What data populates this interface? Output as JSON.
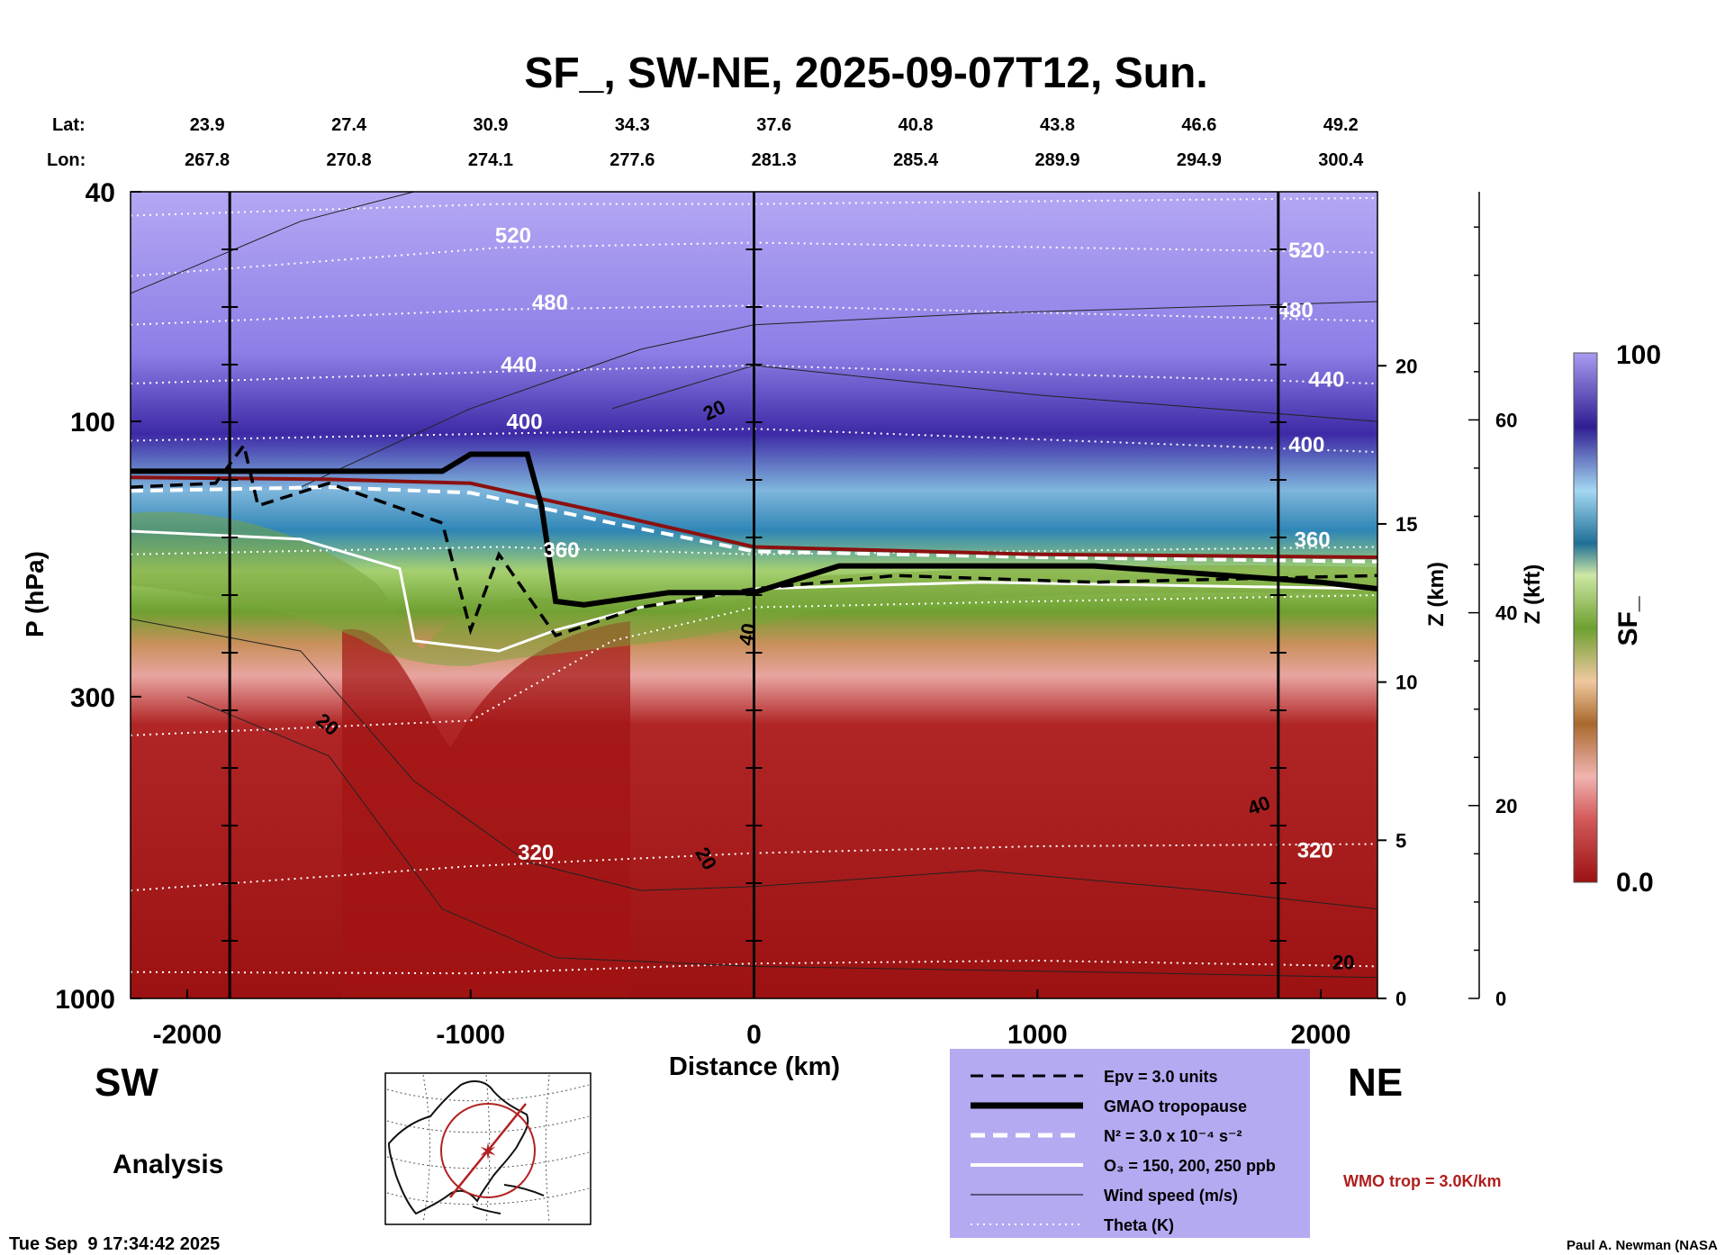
{
  "chart_data": {
    "type": "heatmap",
    "title": "SF_, SW-NE, 2025-09-07T12, Sun.",
    "xlabel": "Distance (km)",
    "ylabel": "P (hPa)",
    "zlabel": "Z (km)",
    "zkft_label": "Z (kft)",
    "xlim": [
      -2200,
      2200
    ],
    "ylim": [
      1000,
      40
    ],
    "x_ticks": [
      -2000,
      -1000,
      0,
      1000,
      2000
    ],
    "x_tick_labels": [
      "-2000",
      "-1000",
      "0",
      "1000",
      "2000"
    ],
    "y_ticks": [
      40,
      100,
      300,
      1000
    ],
    "y_tick_labels": [
      "40",
      "100",
      "300",
      "1000"
    ],
    "z_ticks": [
      0,
      5,
      10,
      15,
      20
    ],
    "z_tick_labels": [
      "0",
      "5",
      "10",
      "15",
      "20"
    ],
    "zkft_ticks": [
      0,
      20,
      40,
      60
    ],
    "zkft_tick_labels": [
      "0",
      "20",
      "40",
      "60"
    ],
    "lat_label": "Lat:",
    "lon_label": "Lon:",
    "lat_values": [
      "23.9",
      "27.4",
      "30.9",
      "34.3",
      "37.6",
      "40.8",
      "43.8",
      "46.6",
      "49.2"
    ],
    "lon_values": [
      "267.8",
      "270.8",
      "274.1",
      "277.6",
      "281.3",
      "285.4",
      "289.9",
      "294.9",
      "300.4"
    ],
    "vertical_markers_km": [
      -1850,
      0,
      1850
    ],
    "colorbar": {
      "label": "SF_",
      "min_label": "0.0",
      "max_label": "100"
    },
    "theta_labels": [
      {
        "text": "520",
        "x": -850,
        "p": 49
      },
      {
        "text": "480",
        "x": -720,
        "p": 64
      },
      {
        "text": "440",
        "x": -830,
        "p": 82
      },
      {
        "text": "400",
        "x": -810,
        "p": 103
      },
      {
        "text": "360",
        "x": -680,
        "p": 172
      },
      {
        "text": "320",
        "x": -770,
        "p": 575
      },
      {
        "text": "520",
        "x": 1950,
        "p": 52
      },
      {
        "text": "480",
        "x": 1910,
        "p": 66
      },
      {
        "text": "440",
        "x": 2020,
        "p": 87
      },
      {
        "text": "400",
        "x": 1950,
        "p": 113
      },
      {
        "text": "360",
        "x": 1970,
        "p": 165
      },
      {
        "text": "320",
        "x": 1980,
        "p": 570
      }
    ],
    "wind_labels": [
      {
        "text": "20",
        "x": -130,
        "p": 98,
        "rot": -25
      },
      {
        "text": "40",
        "x": 0,
        "p": 235,
        "rot": -80
      },
      {
        "text": "20",
        "x": -1520,
        "p": 342,
        "rot": 40
      },
      {
        "text": "20",
        "x": -190,
        "p": 580,
        "rot": 60
      },
      {
        "text": "40",
        "x": 1790,
        "p": 475,
        "rot": -20
      },
      {
        "text": "20",
        "x": 2080,
        "p": 890,
        "rot": 0
      }
    ],
    "legend": {
      "placement": "bottom-center",
      "items": [
        {
          "label": "Epv = 3.0 units",
          "style": "dashed-black"
        },
        {
          "label": "GMAO tropopause",
          "style": "thick-black"
        },
        {
          "label": "N² = 3.0 x 10⁻⁴ s⁻²",
          "style": "dashed-white"
        },
        {
          "label": "O₃ = 150, 200, 250 ppb",
          "style": "solid-white"
        },
        {
          "label": "Wind speed (m/s)",
          "style": "thin-black"
        },
        {
          "label": "Theta (K)",
          "style": "dotted-white"
        }
      ]
    },
    "colors": {
      "low": "#9c1111",
      "high": "#b4a8f4",
      "legend_bg": "#b4aaf2",
      "wmo_text": "#b01e1e"
    }
  },
  "labels": {
    "sw": "SW",
    "ne": "NE",
    "analysis": "Analysis",
    "timestamp": "Tue Sep  9 17:34:42 2025",
    "wmo": "WMO trop = 3.0K/km",
    "credit": "Paul A. Newman (NASA"
  }
}
